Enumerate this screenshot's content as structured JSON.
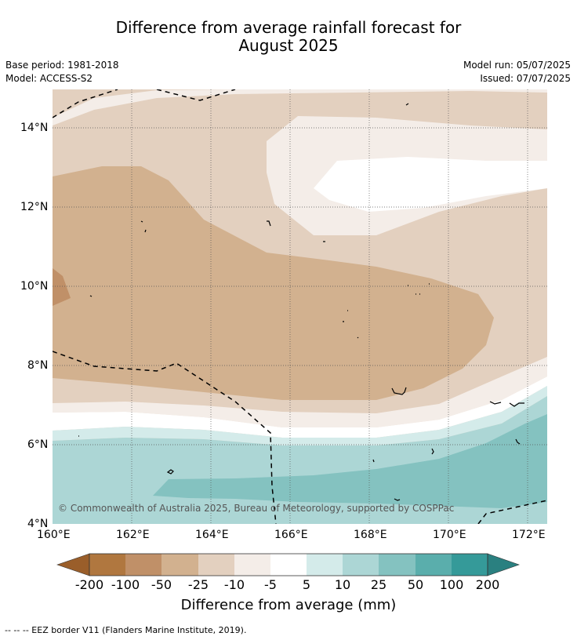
{
  "title_line1": "Difference from average rainfall forecast for",
  "title_line2": "August 2025",
  "base_period": "Base period: 1981-2018",
  "model": "Model: ACCESS-S2",
  "model_run": "Model run: 05/07/2025",
  "issued": "Issued: 07/07/2025",
  "copyright": "© Commonwealth of Australia 2025, Bureau of Meteorology, supported by COSPPac",
  "lat_ticks": [
    "14°N",
    "12°N",
    "10°N",
    "8°N",
    "6°N",
    "4°N"
  ],
  "lon_ticks": [
    "160°E",
    "162°E",
    "164°E",
    "166°E",
    "168°E",
    "170°E",
    "172°E"
  ],
  "colorbar": {
    "title": "Difference from average (mm)",
    "labels": [
      "-200",
      "-100",
      "-50",
      "-25",
      "-10",
      "-5",
      "5",
      "10",
      "25",
      "50",
      "100",
      "200"
    ],
    "colors": [
      "#9a5e2a",
      "#b0773f",
      "#c09068",
      "#d2b18f",
      "#e3d0bf",
      "#f4ede8",
      "#ffffff",
      "#d4ebea",
      "#acd6d5",
      "#84c2c0",
      "#5aaeac",
      "#359a99",
      "#2a8080"
    ]
  },
  "footer": "--  --  -- EEZ border V11 (Flanders Marine Institute, 2019)."
}
